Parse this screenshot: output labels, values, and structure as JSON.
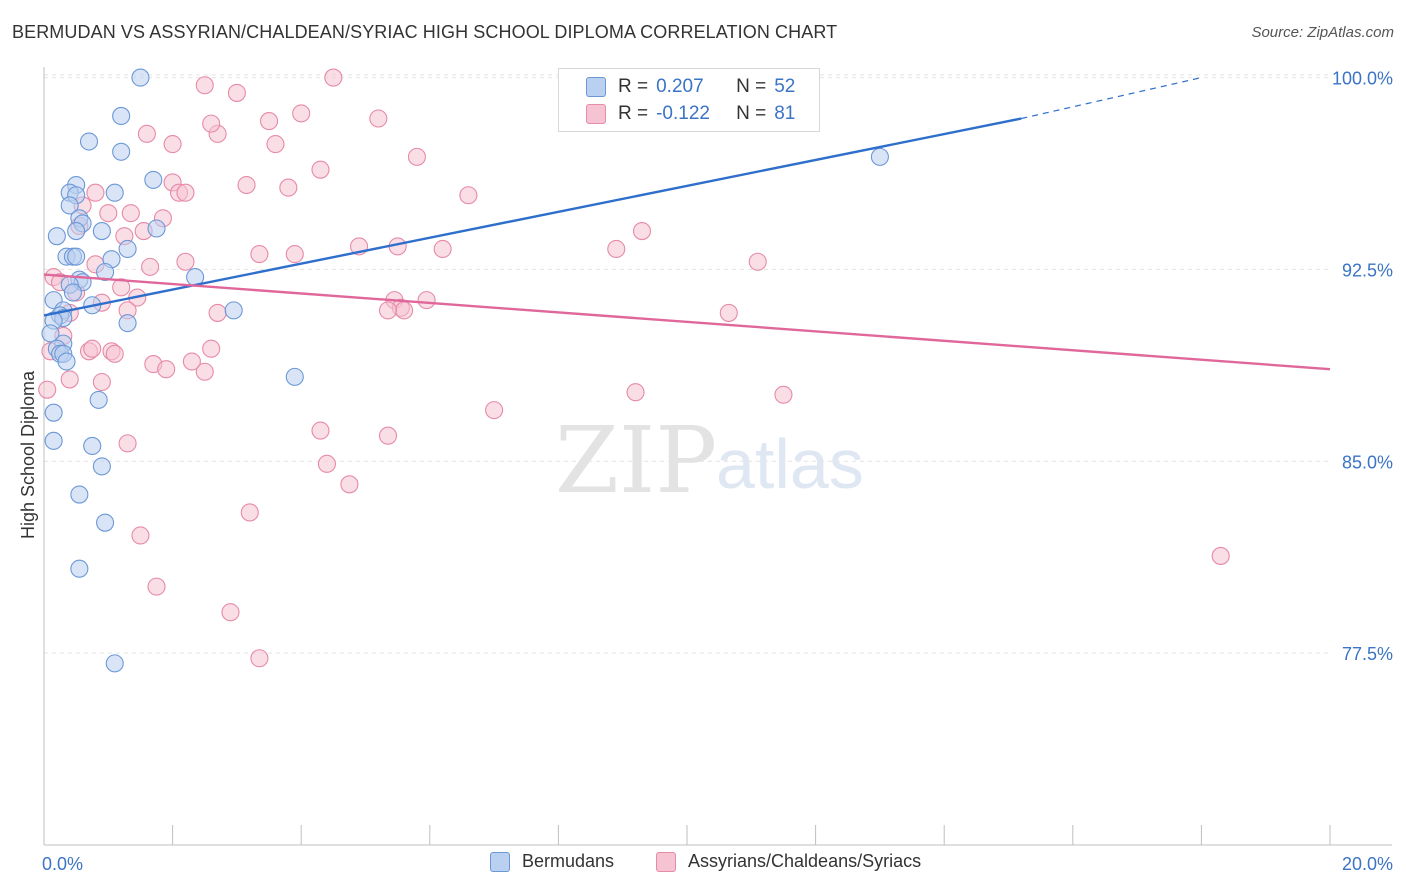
{
  "title": "BERMUDAN VS ASSYRIAN/CHALDEAN/SYRIAC HIGH SCHOOL DIPLOMA CORRELATION CHART",
  "source": "Source: ZipAtlas.com",
  "watermark": {
    "zip": "ZIP",
    "atlas": "atlas"
  },
  "legend": {
    "r_label": "R =",
    "n_label": "N =",
    "rows": [
      {
        "r": "0.207",
        "n": "52"
      },
      {
        "r": "-0.122",
        "n": "81"
      }
    ]
  },
  "colors": {
    "blue_fill": "#b9d0f0",
    "blue_stroke": "#6c98d6",
    "blue_line": "#2f6fcc",
    "pink_fill": "#f6c3d2",
    "pink_stroke": "#e68aa8",
    "pink_line": "#e0679a",
    "axis_label": "#3b74c5"
  },
  "chart_data": {
    "type": "scatter",
    "title": "BERMUDAN VS ASSYRIAN/CHALDEAN/SYRIAC HIGH SCHOOL DIPLOMA CORRELATION CHART",
    "xlabel": "",
    "ylabel": "High School Diploma",
    "xlim": [
      0,
      20
    ],
    "ylim": [
      70,
      101
    ],
    "x_tick_labels": [
      "0.0%",
      "20.0%"
    ],
    "y_ticks": [
      77.5,
      85.0,
      92.5,
      100.0
    ],
    "y_tick_labels": [
      "77.5%",
      "85.0%",
      "92.5%",
      "100.0%"
    ],
    "grid": true,
    "legend_position": "top-center",
    "series": [
      {
        "name": "Bermudans",
        "r": 0.207,
        "n": 52,
        "trend": {
          "x0": 0.0,
          "y0": 90.7,
          "x1": 15.2,
          "y1": 98.4,
          "dash_to_x": 18.0,
          "dash_to_y": 100.0
        },
        "points": [
          [
            1.5,
            100.0
          ],
          [
            1.2,
            98.5
          ],
          [
            0.7,
            97.5
          ],
          [
            1.2,
            97.1
          ],
          [
            1.7,
            96.0
          ],
          [
            13.0,
            96.9
          ],
          [
            0.5,
            95.8
          ],
          [
            0.4,
            95.5
          ],
          [
            0.5,
            95.4
          ],
          [
            1.1,
            95.5
          ],
          [
            0.4,
            95.0
          ],
          [
            0.55,
            94.5
          ],
          [
            0.6,
            94.3
          ],
          [
            0.5,
            94.0
          ],
          [
            0.9,
            94.0
          ],
          [
            1.75,
            94.1
          ],
          [
            0.2,
            93.8
          ],
          [
            1.3,
            93.3
          ],
          [
            0.35,
            93.0
          ],
          [
            0.45,
            93.0
          ],
          [
            0.5,
            93.0
          ],
          [
            1.05,
            92.9
          ],
          [
            0.95,
            92.4
          ],
          [
            2.35,
            92.2
          ],
          [
            0.55,
            92.1
          ],
          [
            0.6,
            92.0
          ],
          [
            0.4,
            91.9
          ],
          [
            0.45,
            91.6
          ],
          [
            0.15,
            91.3
          ],
          [
            0.75,
            91.1
          ],
          [
            0.3,
            90.9
          ],
          [
            0.25,
            90.7
          ],
          [
            0.3,
            90.6
          ],
          [
            0.15,
            90.5
          ],
          [
            1.3,
            90.4
          ],
          [
            2.95,
            90.9
          ],
          [
            0.1,
            90.0
          ],
          [
            0.3,
            89.6
          ],
          [
            0.2,
            89.4
          ],
          [
            0.25,
            89.2
          ],
          [
            0.3,
            89.2
          ],
          [
            0.35,
            88.9
          ],
          [
            3.9,
            88.3
          ],
          [
            0.85,
            87.4
          ],
          [
            0.15,
            86.9
          ],
          [
            0.15,
            85.8
          ],
          [
            0.75,
            85.6
          ],
          [
            0.9,
            84.8
          ],
          [
            0.55,
            83.7
          ],
          [
            0.95,
            82.6
          ],
          [
            0.55,
            80.8
          ],
          [
            1.1,
            77.1
          ]
        ]
      },
      {
        "name": "Assyrians/Chaldeans/Syriacs",
        "r": -0.122,
        "n": 81,
        "trend": {
          "x0": 0.0,
          "y0": 92.3,
          "x1": 20.0,
          "y1": 88.6
        },
        "points": [
          [
            4.5,
            100.0
          ],
          [
            2.5,
            99.7
          ],
          [
            3.0,
            99.4
          ],
          [
            1.6,
            97.8
          ],
          [
            2.7,
            97.8
          ],
          [
            5.2,
            98.4
          ],
          [
            3.5,
            98.3
          ],
          [
            4.0,
            98.6
          ],
          [
            2.6,
            98.2
          ],
          [
            2.0,
            97.4
          ],
          [
            3.6,
            97.4
          ],
          [
            5.8,
            96.9
          ],
          [
            4.3,
            96.4
          ],
          [
            3.15,
            95.8
          ],
          [
            3.8,
            95.7
          ],
          [
            2.0,
            95.9
          ],
          [
            2.1,
            95.5
          ],
          [
            2.2,
            95.5
          ],
          [
            0.8,
            95.5
          ],
          [
            6.6,
            95.4
          ],
          [
            0.6,
            95.0
          ],
          [
            1.0,
            94.7
          ],
          [
            1.35,
            94.7
          ],
          [
            1.85,
            94.5
          ],
          [
            0.55,
            94.2
          ],
          [
            1.55,
            94.0
          ],
          [
            1.25,
            93.8
          ],
          [
            9.3,
            94.0
          ],
          [
            4.9,
            93.4
          ],
          [
            5.5,
            93.4
          ],
          [
            6.2,
            93.3
          ],
          [
            8.9,
            93.3
          ],
          [
            3.35,
            93.1
          ],
          [
            3.9,
            93.1
          ],
          [
            11.1,
            92.8
          ],
          [
            0.8,
            92.7
          ],
          [
            1.65,
            92.6
          ],
          [
            2.2,
            92.8
          ],
          [
            0.15,
            92.2
          ],
          [
            0.25,
            92.0
          ],
          [
            1.2,
            91.8
          ],
          [
            0.5,
            91.6
          ],
          [
            1.45,
            91.4
          ],
          [
            5.45,
            91.3
          ],
          [
            5.95,
            91.3
          ],
          [
            0.9,
            91.2
          ],
          [
            5.55,
            91.0
          ],
          [
            5.6,
            90.9
          ],
          [
            5.35,
            90.9
          ],
          [
            1.3,
            90.9
          ],
          [
            0.4,
            90.8
          ],
          [
            2.7,
            90.8
          ],
          [
            10.65,
            90.8
          ],
          [
            1.05,
            89.3
          ],
          [
            0.7,
            89.3
          ],
          [
            0.75,
            89.4
          ],
          [
            2.6,
            89.4
          ],
          [
            0.1,
            89.3
          ],
          [
            2.3,
            88.9
          ],
          [
            1.7,
            88.8
          ],
          [
            1.9,
            88.6
          ],
          [
            2.5,
            88.5
          ],
          [
            0.4,
            88.2
          ],
          [
            0.9,
            88.1
          ],
          [
            0.05,
            87.8
          ],
          [
            9.2,
            87.7
          ],
          [
            11.5,
            87.6
          ],
          [
            7.0,
            87.0
          ],
          [
            4.3,
            86.2
          ],
          [
            5.35,
            86.0
          ],
          [
            1.3,
            85.7
          ],
          [
            4.4,
            84.9
          ],
          [
            4.75,
            84.1
          ],
          [
            3.2,
            83.0
          ],
          [
            1.5,
            82.1
          ],
          [
            18.3,
            81.3
          ],
          [
            1.75,
            80.1
          ],
          [
            2.9,
            79.1
          ],
          [
            3.35,
            77.3
          ],
          [
            0.3,
            89.9
          ],
          [
            1.1,
            89.2
          ]
        ]
      }
    ]
  }
}
